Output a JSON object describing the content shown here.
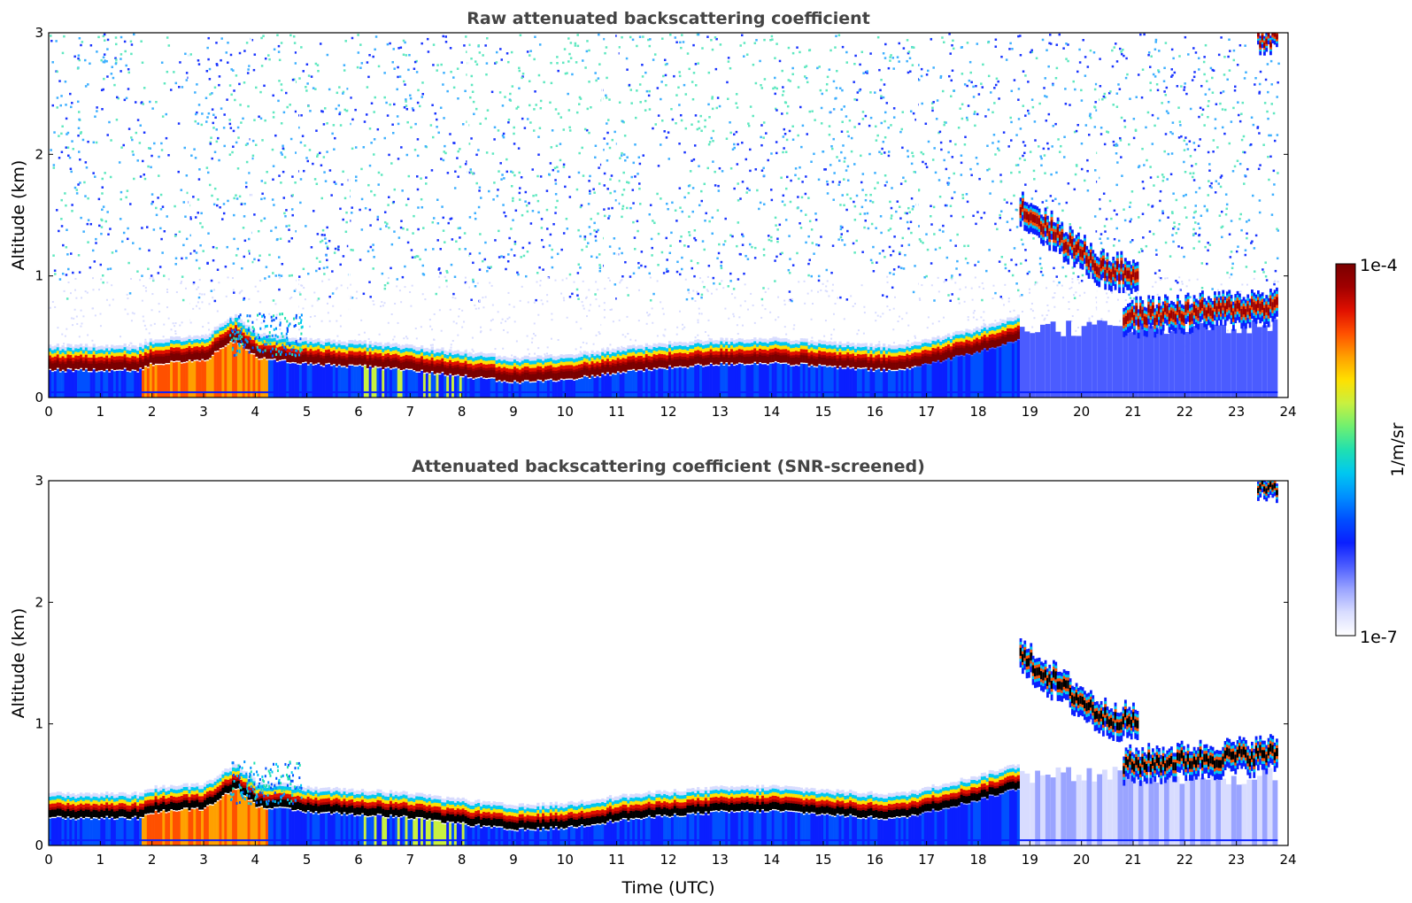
{
  "colors": {
    "colormap": [
      "#ffffff",
      "#d8dcff",
      "#9aa4ff",
      "#4b5cff",
      "#0a1fff",
      "#0050ff",
      "#0090ff",
      "#00c8f0",
      "#20e0b0",
      "#70f070",
      "#c8f040",
      "#ffe000",
      "#ffa000",
      "#ff5000",
      "#e01000",
      "#a00000",
      "#7a0000"
    ],
    "snr_cap": "#000000",
    "raw_noise_low": "#1a35ff",
    "raw_noise_mid": "#3fb0ff",
    "raw_noise_high": "#60e8c0",
    "screened_bg": "#ffffff"
  },
  "colorbar": {
    "label": "1/m/sr",
    "max_label": "1e-4",
    "min_label": "1e-7",
    "range": [
      1e-07,
      0.0001
    ],
    "scale": "log"
  },
  "chart_data": [
    {
      "type": "heatmap",
      "title": "Raw attenuated backscattering coefficient",
      "xlabel": "",
      "ylabel": "Altitude (km)",
      "xlim": [
        0,
        24
      ],
      "ylim": [
        0,
        3
      ],
      "xticks": [
        "0",
        "1",
        "2",
        "3",
        "4",
        "5",
        "6",
        "7",
        "8",
        "9",
        "10",
        "11",
        "12",
        "13",
        "14",
        "15",
        "16",
        "17",
        "18",
        "19",
        "20",
        "21",
        "22",
        "23",
        "24"
      ],
      "yticks": [
        "0",
        "1",
        "2",
        "3"
      ],
      "boundary_layer_top_km": [
        [
          0,
          0.3
        ],
        [
          1,
          0.3
        ],
        [
          1.7,
          0.3
        ],
        [
          2,
          0.35
        ],
        [
          3,
          0.38
        ],
        [
          3.6,
          0.55
        ],
        [
          4,
          0.4
        ],
        [
          5,
          0.35
        ],
        [
          6,
          0.33
        ],
        [
          7,
          0.3
        ],
        [
          8,
          0.25
        ],
        [
          9,
          0.2
        ],
        [
          10,
          0.22
        ],
        [
          11,
          0.28
        ],
        [
          12,
          0.32
        ],
        [
          13,
          0.35
        ],
        [
          14,
          0.36
        ],
        [
          15,
          0.33
        ],
        [
          16,
          0.3
        ],
        [
          16.5,
          0.3
        ],
        [
          17,
          0.35
        ],
        [
          18,
          0.45
        ],
        [
          18.8,
          0.55
        ]
      ],
      "cloud_layers": [
        {
          "x_start": 18.8,
          "x_end": 20.4,
          "alt_start_km": 1.55,
          "alt_end_km": 1.05
        },
        {
          "x_start": 20.4,
          "x_end": 21.1,
          "alt_start_km": 1.05,
          "alt_end_km": 1.0
        },
        {
          "x_start": 20.8,
          "x_end": 23.8,
          "alt_start_km": 0.65,
          "alt_end_km": 0.75
        },
        {
          "x_start": 23.4,
          "x_end": 23.8,
          "alt_start_km": 2.95,
          "alt_end_km": 2.95
        }
      ]
    },
    {
      "type": "heatmap",
      "title": "Attenuated backscattering coefficient (SNR-screened)",
      "xlabel": "Time (UTC)",
      "ylabel": "Altitude (km)",
      "xlim": [
        0,
        24
      ],
      "ylim": [
        0,
        3
      ],
      "xticks": [
        "0",
        "1",
        "2",
        "3",
        "4",
        "5",
        "6",
        "7",
        "8",
        "9",
        "10",
        "11",
        "12",
        "13",
        "14",
        "15",
        "16",
        "17",
        "18",
        "19",
        "20",
        "21",
        "22",
        "23",
        "24"
      ],
      "yticks": [
        "0",
        "1",
        "2",
        "3"
      ],
      "boundary_layer_top_km": [
        [
          0,
          0.3
        ],
        [
          1,
          0.3
        ],
        [
          1.7,
          0.3
        ],
        [
          2,
          0.35
        ],
        [
          3,
          0.38
        ],
        [
          3.6,
          0.55
        ],
        [
          4,
          0.4
        ],
        [
          5,
          0.35
        ],
        [
          6,
          0.33
        ],
        [
          7,
          0.3
        ],
        [
          8,
          0.25
        ],
        [
          9,
          0.2
        ],
        [
          10,
          0.22
        ],
        [
          11,
          0.28
        ],
        [
          12,
          0.32
        ],
        [
          13,
          0.35
        ],
        [
          14,
          0.36
        ],
        [
          15,
          0.33
        ],
        [
          16,
          0.3
        ],
        [
          16.5,
          0.3
        ],
        [
          17,
          0.35
        ],
        [
          18,
          0.45
        ],
        [
          18.8,
          0.55
        ]
      ],
      "cloud_layers": [
        {
          "x_start": 18.8,
          "x_end": 20.4,
          "alt_start_km": 1.55,
          "alt_end_km": 1.05
        },
        {
          "x_start": 20.4,
          "x_end": 21.1,
          "alt_start_km": 1.05,
          "alt_end_km": 1.0
        },
        {
          "x_start": 20.8,
          "x_end": 23.8,
          "alt_start_km": 0.65,
          "alt_end_km": 0.75
        },
        {
          "x_start": 23.4,
          "x_end": 23.8,
          "alt_start_km": 2.95,
          "alt_end_km": 2.95
        }
      ]
    }
  ]
}
